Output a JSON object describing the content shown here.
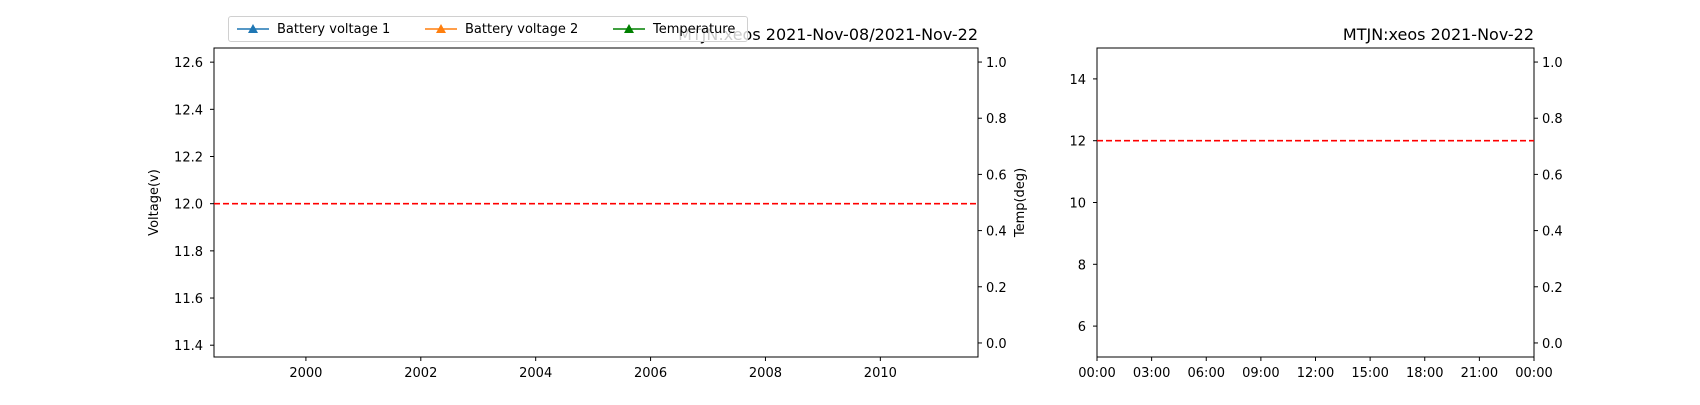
{
  "chart_data": [
    {
      "type": "line",
      "title": "MTJN:xeos 2021-Nov-08/2021-Nov-22",
      "ylabel": "Voltage(v)",
      "y2label": "Temp(deg)",
      "xlim": [
        1998.4,
        2011.7
      ],
      "xticks": [
        "2000",
        "2002",
        "2004",
        "2006",
        "2008",
        "2010"
      ],
      "xtick_values": [
        2000,
        2002,
        2004,
        2006,
        2008,
        2010
      ],
      "ylim": [
        11.35,
        12.66
      ],
      "yticks": [
        "11.4",
        "11.6",
        "11.8",
        "12.0",
        "12.2",
        "12.4",
        "12.6"
      ],
      "ytick_values": [
        11.4,
        11.6,
        11.8,
        12.0,
        12.2,
        12.4,
        12.6
      ],
      "y2lim": [
        -0.05,
        1.05
      ],
      "y2ticks": [
        "0.0",
        "0.2",
        "0.4",
        "0.6",
        "0.8",
        "1.0"
      ],
      "y2tick_values": [
        0.0,
        0.2,
        0.4,
        0.6,
        0.8,
        1.0
      ],
      "reference_line": {
        "y": 12.0,
        "color": "#ff0000",
        "style": "dashed"
      },
      "series": [
        {
          "name": "Battery voltage 1",
          "values": []
        },
        {
          "name": "Battery voltage 2",
          "values": []
        },
        {
          "name": "Temperature",
          "values": []
        }
      ],
      "legend": "top-left",
      "grid": false
    },
    {
      "type": "line",
      "title": "MTJN:xeos 2021-Nov-22",
      "xlim": [
        0,
        24
      ],
      "xticks": [
        "00:00",
        "03:00",
        "06:00",
        "09:00",
        "12:00",
        "15:00",
        "18:00",
        "21:00",
        "00:00"
      ],
      "xtick_values": [
        0,
        3,
        6,
        9,
        12,
        15,
        18,
        21,
        24
      ],
      "ylim": [
        5,
        15
      ],
      "yticks": [
        "6",
        "8",
        "10",
        "12",
        "14"
      ],
      "ytick_values": [
        6,
        8,
        10,
        12,
        14
      ],
      "y2lim": [
        -0.05,
        1.05
      ],
      "y2ticks": [
        "0.0",
        "0.2",
        "0.4",
        "0.6",
        "0.8",
        "1.0"
      ],
      "y2tick_values": [
        0.0,
        0.2,
        0.4,
        0.6,
        0.8,
        1.0
      ],
      "reference_line": {
        "y": 12.0,
        "color": "#ff0000",
        "style": "dashed"
      },
      "series": [],
      "grid": false
    }
  ],
  "legend": {
    "items": [
      {
        "label": "Battery voltage 1",
        "color": "#1f77b4"
      },
      {
        "label": "Battery voltage 2",
        "color": "#ff7f0e"
      },
      {
        "label": "Temperature",
        "color": "#008000"
      }
    ]
  }
}
